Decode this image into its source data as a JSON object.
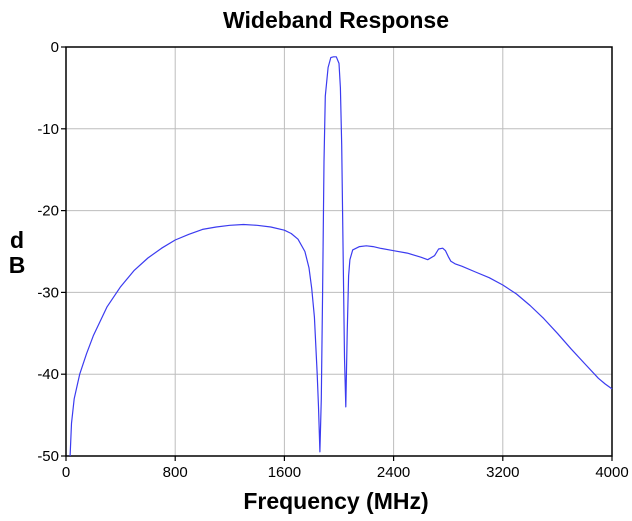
{
  "chart_data": {
    "type": "line",
    "title": "Wideband Response",
    "xlabel": "Frequency (MHz)",
    "ylabel_lines": [
      "d",
      "B"
    ],
    "xlim": [
      0,
      4000
    ],
    "ylim": [
      -50,
      0
    ],
    "xticks": [
      0,
      800,
      1600,
      2400,
      3200,
      4000
    ],
    "yticks": [
      0,
      -10,
      -20,
      -30,
      -40,
      -50
    ],
    "grid": true,
    "series": [
      {
        "color": "#3b3bf0",
        "x": [
          30,
          40,
          60,
          100,
          150,
          200,
          300,
          400,
          500,
          600,
          700,
          800,
          900,
          1000,
          1100,
          1200,
          1300,
          1400,
          1500,
          1600,
          1650,
          1700,
          1750,
          1780,
          1800,
          1820,
          1840,
          1850,
          1860,
          1870,
          1880,
          1890,
          1900,
          1920,
          1940,
          1960,
          1980,
          2000,
          2010,
          2020,
          2030,
          2040,
          2050,
          2060,
          2070,
          2080,
          2100,
          2150,
          2200,
          2250,
          2300,
          2400,
          2500,
          2600,
          2650,
          2700,
          2730,
          2760,
          2780,
          2800,
          2820,
          2850,
          2900,
          3000,
          3100,
          3200,
          3300,
          3400,
          3500,
          3600,
          3700,
          3800,
          3900,
          3950,
          4000
        ],
        "y": [
          -50,
          -46,
          -43,
          -40,
          -37.5,
          -35.3,
          -31.8,
          -29.3,
          -27.3,
          -25.8,
          -24.6,
          -23.6,
          -22.9,
          -22.3,
          -22.0,
          -21.8,
          -21.7,
          -21.8,
          -22.0,
          -22.4,
          -22.8,
          -23.5,
          -25,
          -27,
          -29.5,
          -33,
          -40,
          -44,
          -49.5,
          -43,
          -30,
          -14,
          -6,
          -2.5,
          -1.3,
          -1.2,
          -1.2,
          -2,
          -5,
          -12,
          -25,
          -38,
          -44,
          -35,
          -28,
          -26,
          -24.8,
          -24.4,
          -24.3,
          -24.4,
          -24.6,
          -24.9,
          -25.2,
          -25.7,
          -26.0,
          -25.5,
          -24.7,
          -24.6,
          -24.9,
          -25.6,
          -26.2,
          -26.5,
          -26.8,
          -27.5,
          -28.2,
          -29.1,
          -30.2,
          -31.6,
          -33.2,
          -35.0,
          -36.9,
          -38.7,
          -40.5,
          -41.2,
          -41.8
        ]
      }
    ]
  }
}
